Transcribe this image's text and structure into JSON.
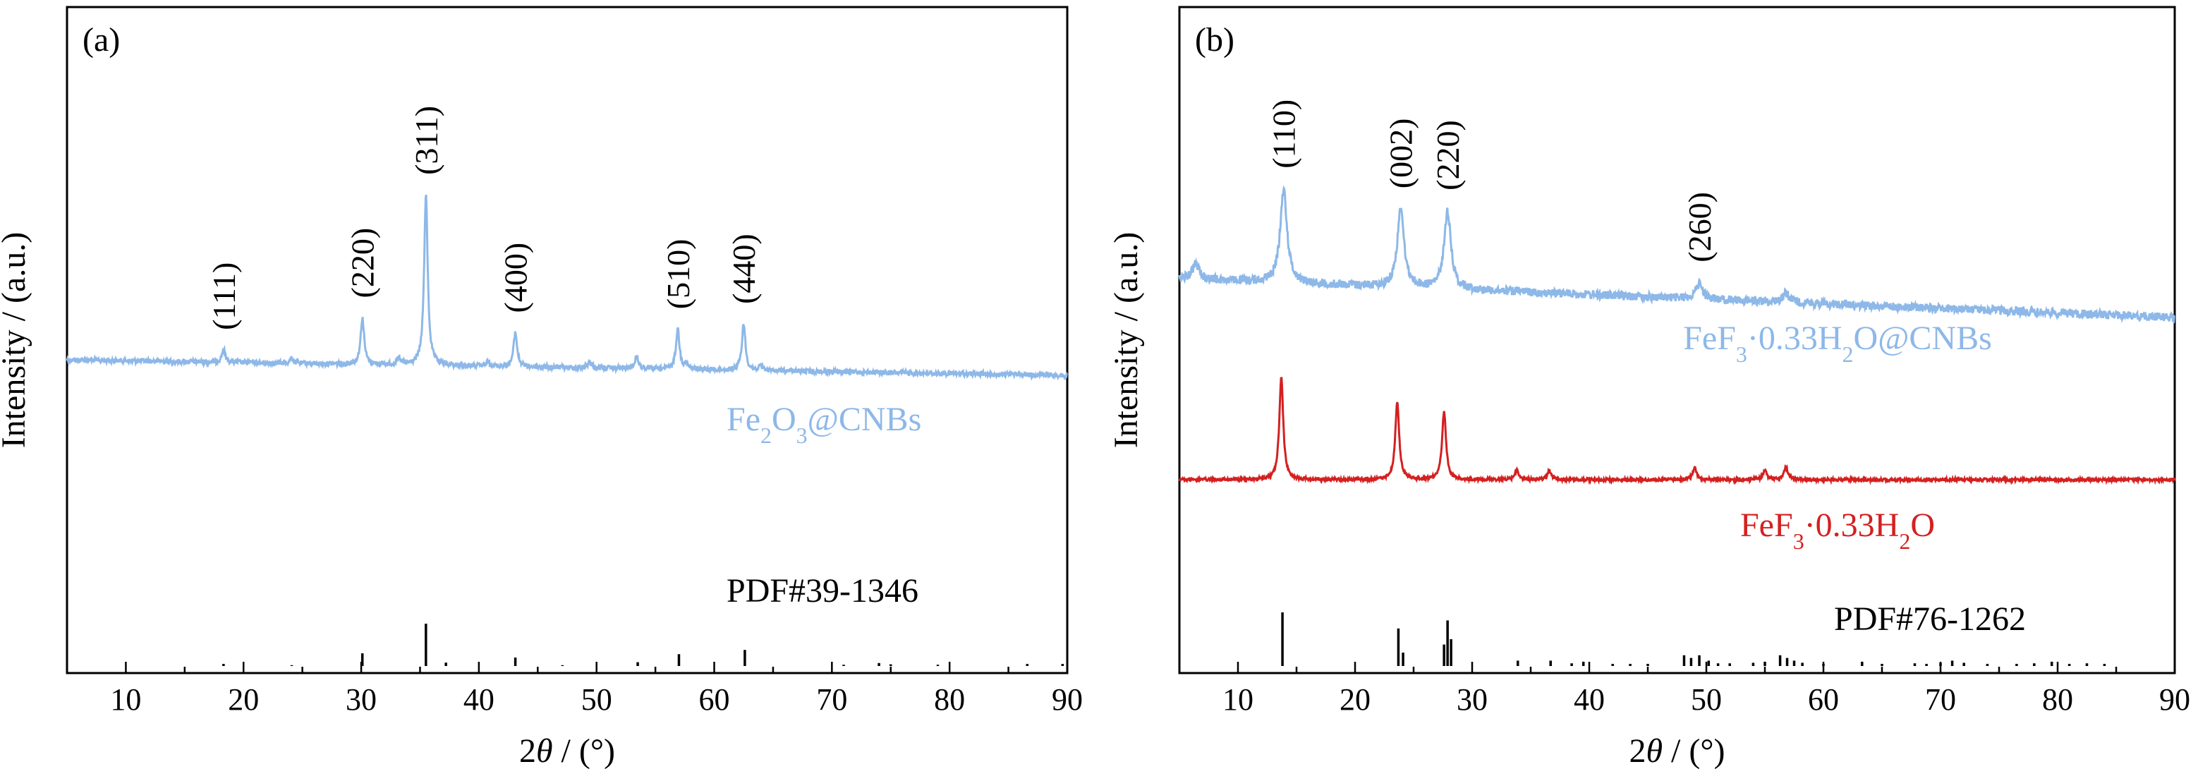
{
  "chart_data": [
    {
      "type": "line",
      "panel_label": "(a)",
      "xlabel_prefix": "2",
      "xlabel_symbol": "θ",
      "xlabel_suffix": " / (°)",
      "ylabel": "Intensity / (a.u.)",
      "xlim": [
        5,
        90
      ],
      "xticks": [
        10,
        20,
        30,
        40,
        50,
        60,
        70,
        80,
        90
      ],
      "y_ticks_shown": false,
      "grid": false,
      "peaks": [
        {
          "label": "(111)",
          "x": 18.3,
          "height": 0.04
        },
        {
          "label": "(220)",
          "x": 30.1,
          "height": 0.15
        },
        {
          "label": "(311)",
          "x": 35.5,
          "height": 0.55
        },
        {
          "label": "(400)",
          "x": 43.1,
          "height": 0.11
        },
        {
          "label": "(510)",
          "x": 56.9,
          "height": 0.13
        },
        {
          "label": "(440)",
          "x": 62.5,
          "height": 0.15
        }
      ],
      "minor_peaks": [
        {
          "x": 24.1,
          "height": 0.015
        },
        {
          "x": 33.2,
          "height": 0.02
        },
        {
          "x": 40.8,
          "height": 0.015
        },
        {
          "x": 49.4,
          "height": 0.02
        },
        {
          "x": 53.4,
          "height": 0.04
        },
        {
          "x": 57.6,
          "height": 0.015
        },
        {
          "x": 64.0,
          "height": 0.015
        }
      ],
      "series": [
        {
          "name": "Fe2O3@CNBs",
          "name_parts": [
            "Fe",
            "2",
            "O",
            "3",
            "@CNBs"
          ],
          "color": "#8db8e8",
          "baseline_start": 0.0,
          "baseline_end": -0.05
        }
      ],
      "reference": {
        "name": "PDF#39-1346",
        "color": "#000000",
        "sticks": [
          {
            "x": 18.3,
            "i": 0.05
          },
          {
            "x": 24.1,
            "i": 0.02
          },
          {
            "x": 30.1,
            "i": 0.3
          },
          {
            "x": 35.5,
            "i": 1.0
          },
          {
            "x": 37.2,
            "i": 0.08
          },
          {
            "x": 43.1,
            "i": 0.2
          },
          {
            "x": 47.1,
            "i": 0.02
          },
          {
            "x": 53.5,
            "i": 0.09
          },
          {
            "x": 57.0,
            "i": 0.28
          },
          {
            "x": 62.6,
            "i": 0.38
          },
          {
            "x": 71.0,
            "i": 0.03
          },
          {
            "x": 74.0,
            "i": 0.07
          },
          {
            "x": 75.0,
            "i": 0.04
          },
          {
            "x": 79.0,
            "i": 0.03
          },
          {
            "x": 86.6,
            "i": 0.05
          },
          {
            "x": 89.6,
            "i": 0.05
          }
        ]
      }
    },
    {
      "type": "line",
      "panel_label": "(b)",
      "xlabel_prefix": "2",
      "xlabel_symbol": "θ",
      "xlabel_suffix": " / (°)",
      "ylabel": "Intensity / (a.u.)",
      "xlim": [
        5,
        90
      ],
      "xticks": [
        10,
        20,
        30,
        40,
        50,
        60,
        70,
        80,
        90
      ],
      "y_ticks_shown": false,
      "grid": false,
      "peaks": [
        {
          "label": "(110)",
          "x": 13.9,
          "height": 0.3
        },
        {
          "label": "(002)",
          "x": 23.9,
          "height": 0.25
        },
        {
          "label": "(220)",
          "x": 27.9,
          "height": 0.25
        },
        {
          "label": "(260)",
          "x": 49.4,
          "height": 0.05
        }
      ],
      "series": [
        {
          "name": "FeF3·0.33H2O@CNBs",
          "name_parts": [
            "FeF",
            "3",
            "·0.33H",
            "2",
            "O@CNBs"
          ],
          "color": "#8db8e8",
          "peaks": [
            {
              "x": 6.4,
              "h": 0.05
            },
            {
              "x": 13.9,
              "h": 0.3
            },
            {
              "x": 23.9,
              "h": 0.25
            },
            {
              "x": 27.9,
              "h": 0.25
            },
            {
              "x": 49.4,
              "h": 0.05
            },
            {
              "x": 56.8,
              "h": 0.03
            }
          ]
        },
        {
          "name": "FeF3·0.33H2O",
          "name_parts": [
            "FeF",
            "3",
            "·0.33H",
            "2",
            "O"
          ],
          "color": "#d42020",
          "peaks": [
            {
              "x": 13.7,
              "h": 0.33
            },
            {
              "x": 23.6,
              "h": 0.25
            },
            {
              "x": 27.6,
              "h": 0.22
            },
            {
              "x": 33.8,
              "h": 0.03
            },
            {
              "x": 36.6,
              "h": 0.03
            },
            {
              "x": 49.0,
              "h": 0.04
            },
            {
              "x": 55.0,
              "h": 0.03
            },
            {
              "x": 56.8,
              "h": 0.04
            }
          ]
        }
      ],
      "reference": {
        "name": "PDF#76-1262",
        "color": "#000000",
        "sticks": [
          {
            "x": 13.8,
            "i": 1.0
          },
          {
            "x": 23.7,
            "i": 0.7
          },
          {
            "x": 24.1,
            "i": 0.25
          },
          {
            "x": 27.6,
            "i": 0.4
          },
          {
            "x": 27.9,
            "i": 0.85
          },
          {
            "x": 28.2,
            "i": 0.5
          },
          {
            "x": 33.9,
            "i": 0.1
          },
          {
            "x": 36.7,
            "i": 0.1
          },
          {
            "x": 38.5,
            "i": 0.05
          },
          {
            "x": 39.5,
            "i": 0.08
          },
          {
            "x": 42.0,
            "i": 0.04
          },
          {
            "x": 43.5,
            "i": 0.04
          },
          {
            "x": 45.0,
            "i": 0.04
          },
          {
            "x": 48.1,
            "i": 0.2
          },
          {
            "x": 48.7,
            "i": 0.15
          },
          {
            "x": 49.4,
            "i": 0.2
          },
          {
            "x": 50.2,
            "i": 0.1
          },
          {
            "x": 51.0,
            "i": 0.05
          },
          {
            "x": 52.0,
            "i": 0.05
          },
          {
            "x": 54.0,
            "i": 0.06
          },
          {
            "x": 55.0,
            "i": 0.08
          },
          {
            "x": 56.3,
            "i": 0.2
          },
          {
            "x": 56.9,
            "i": 0.15
          },
          {
            "x": 57.5,
            "i": 0.1
          },
          {
            "x": 58.2,
            "i": 0.06
          },
          {
            "x": 60.0,
            "i": 0.04
          },
          {
            "x": 63.3,
            "i": 0.08
          },
          {
            "x": 65.0,
            "i": 0.04
          },
          {
            "x": 67.8,
            "i": 0.05
          },
          {
            "x": 68.8,
            "i": 0.04
          },
          {
            "x": 70.0,
            "i": 0.06
          },
          {
            "x": 71.0,
            "i": 0.1
          },
          {
            "x": 72.0,
            "i": 0.06
          },
          {
            "x": 74.0,
            "i": 0.04
          },
          {
            "x": 76.5,
            "i": 0.04
          },
          {
            "x": 78.0,
            "i": 0.05
          },
          {
            "x": 79.5,
            "i": 0.08
          },
          {
            "x": 81.0,
            "i": 0.04
          },
          {
            "x": 82.5,
            "i": 0.05
          },
          {
            "x": 84.0,
            "i": 0.04
          }
        ]
      }
    }
  ]
}
